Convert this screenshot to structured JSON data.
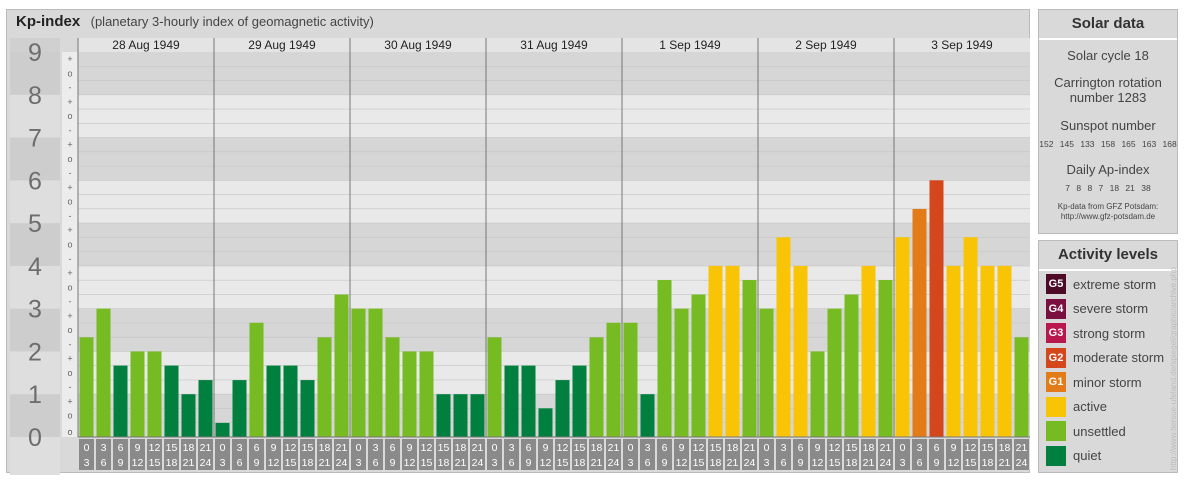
{
  "header": {
    "title": "Kp-index",
    "subtitle": "(planetary 3-hourly index of geomagnetic activity)"
  },
  "chart_data": {
    "type": "bar",
    "ylim": [
      0,
      9
    ],
    "y_ticks": [
      "0",
      "1",
      "2",
      "3",
      "4",
      "5",
      "6",
      "7",
      "8",
      "9"
    ],
    "sub_ticks": [
      "+",
      "o",
      "-"
    ],
    "days": [
      "28 Aug 1949",
      "29 Aug 1949",
      "30 Aug 1949",
      "31 Aug 1949",
      "1 Sep 1949",
      "2 Sep 1949",
      "3 Sep 1949"
    ],
    "interval_top": [
      "0",
      "3",
      "6",
      "9",
      "12",
      "15",
      "18",
      "21"
    ],
    "interval_bottom": [
      "3",
      "6",
      "9",
      "12",
      "15",
      "18",
      "21",
      "24"
    ],
    "values": [
      [
        2.33,
        3.0,
        1.67,
        2.0,
        2.0,
        1.67,
        1.0,
        1.33
      ],
      [
        0.33,
        1.33,
        2.67,
        1.67,
        1.67,
        1.33,
        2.33,
        3.33
      ],
      [
        3.0,
        3.0,
        2.33,
        2.0,
        2.0,
        1.0,
        1.0,
        1.0
      ],
      [
        2.33,
        1.67,
        1.67,
        0.67,
        1.33,
        1.67,
        2.33,
        2.67
      ],
      [
        2.67,
        1.0,
        3.67,
        3.0,
        3.33,
        4.0,
        4.0,
        3.67
      ],
      [
        3.0,
        4.67,
        4.0,
        2.0,
        3.0,
        3.33,
        4.0,
        3.67
      ],
      [
        4.67,
        5.33,
        6.0,
        4.0,
        4.67,
        4.0,
        4.0,
        2.33
      ]
    ],
    "level_colors": {
      "quiet": "#007f3f",
      "unsettled": "#77bb22",
      "active": "#f9c406",
      "G1": "#e37b19",
      "G2": "#d4461c",
      "G3": "#b9184f",
      "G4": "#7a1040",
      "G5": "#4e0b28"
    }
  },
  "solar": {
    "title": "Solar data",
    "cycle": "Solar cycle 18",
    "carrington_1": "Carrington rotation",
    "carrington_2": "number 1283",
    "sunspot_label": "Sunspot number",
    "sunspot_values": "152 145 133 158 165 163 168",
    "ap_label": "Daily Ap-index",
    "ap_values": "7 8 8 7 18 21 38",
    "source_1": "Kp-data from GFZ Potsdam:",
    "source_2": "http://www.gfz-potsdam.de"
  },
  "activity": {
    "title": "Activity levels",
    "items": [
      {
        "badge": "G5",
        "label": "extreme storm",
        "color": "#4e0b28"
      },
      {
        "badge": "G4",
        "label": "severe storm",
        "color": "#7a1040"
      },
      {
        "badge": "G3",
        "label": "strong storm",
        "color": "#b9184f"
      },
      {
        "badge": "G2",
        "label": "moderate storm",
        "color": "#d4461c"
      },
      {
        "badge": "G1",
        "label": "minor storm",
        "color": "#e37b19"
      },
      {
        "badge": "",
        "label": "active",
        "color": "#f9c406"
      },
      {
        "badge": "",
        "label": "unsettled",
        "color": "#77bb22"
      },
      {
        "badge": "",
        "label": "quiet",
        "color": "#007f3f"
      }
    ]
  },
  "watermark": "http://www.tiersue-ufeland.de/spiegel/graphic/archive.php"
}
